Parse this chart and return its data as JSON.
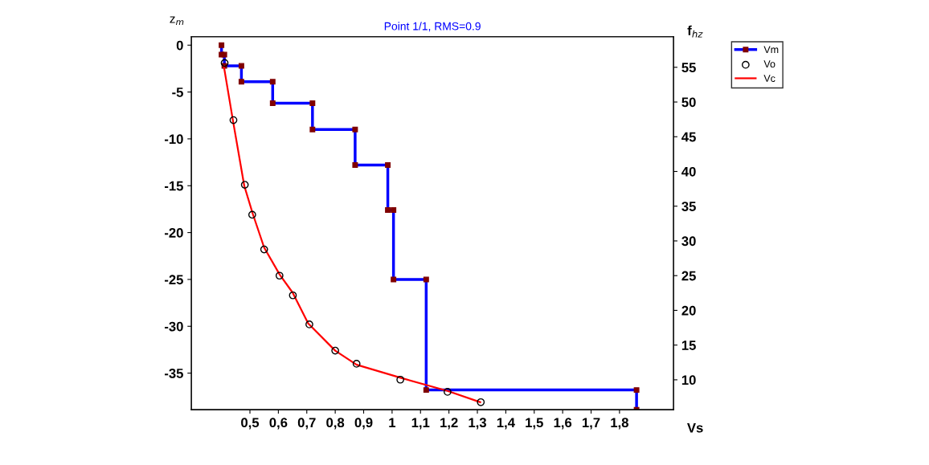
{
  "chart_data": {
    "type": "line",
    "title": "Point 1/1, RMS=0.9",
    "xlabel": "Vs",
    "ylabel": "z$_{m}$",
    "y2label": "f$_{hz}$",
    "xlim": [
      0.294,
      1.99
    ],
    "ylim": [
      -38.9,
      0.9
    ],
    "y2lim": [
      5.7,
      59.4
    ],
    "xticks": [
      {
        "value": 0.5,
        "label": "0,5"
      },
      {
        "value": 0.6,
        "label": "0,6"
      },
      {
        "value": 0.7,
        "label": "0,7"
      },
      {
        "value": 0.8,
        "label": "0,8"
      },
      {
        "value": 0.9,
        "label": "0,9"
      },
      1,
      {
        "value": 1.1,
        "label": "1,1"
      },
      {
        "value": 1.2,
        "label": "1,2"
      },
      {
        "value": 1.3,
        "label": "1,3"
      },
      {
        "value": 1.4,
        "label": "1,4"
      },
      {
        "value": 1.5,
        "label": "1,5"
      },
      {
        "value": 1.6,
        "label": "1,6"
      },
      {
        "value": 1.7,
        "label": "1,7"
      },
      {
        "value": 1.8,
        "label": "1,8"
      }
    ],
    "yticks": [
      0,
      -5,
      -10,
      -15,
      -20,
      -25,
      -30,
      -35
    ],
    "y2ticks": [
      10,
      15,
      20,
      25,
      30,
      35,
      40,
      45,
      50,
      55
    ],
    "grid": false,
    "legend": "top right",
    "series": [
      {
        "name": "Vm",
        "color": "#0000ff",
        "marker": "square",
        "line_style": "solid",
        "x": [
          0.4,
          0.4,
          0.41,
          0.41,
          0.47,
          0.47,
          0.58,
          0.58,
          0.72,
          0.72,
          0.87,
          0.87,
          0.985,
          0.985,
          1.005,
          1.005,
          1.12,
          1.12,
          1.86,
          1.86
        ],
        "values": [
          0,
          -1.0,
          -1.0,
          -2.2,
          -2.2,
          -3.9,
          -3.9,
          -6.2,
          -6.2,
          -9.0,
          -9.0,
          -12.8,
          -12.8,
          -17.6,
          -17.6,
          -25.0,
          -25.0,
          -36.8,
          -36.8,
          -38.9
        ]
      },
      {
        "name": "Vo",
        "type": "scatter",
        "color": "#000000",
        "marker": "circle",
        "x": [
          0.411,
          0.442,
          0.482,
          0.508,
          0.55,
          0.604,
          0.651,
          0.709,
          0.8,
          0.875,
          1.029,
          1.195,
          1.312
        ],
        "values": [
          -1.9,
          -8.0,
          -14.9,
          -18.1,
          -21.8,
          -24.6,
          -26.7,
          -29.8,
          -32.6,
          -34.0,
          -35.7,
          -37.0,
          -38.1
        ]
      },
      {
        "name": "Vc",
        "color": "#ff0000",
        "marker": "none",
        "line_style": "solid",
        "x": [
          0.408,
          0.44,
          0.48,
          0.51,
          0.55,
          0.605,
          0.65,
          0.705,
          0.8,
          0.875,
          1.03,
          1.195,
          1.31
        ],
        "values": [
          -2.2,
          -8.0,
          -15.0,
          -18.0,
          -21.6,
          -24.5,
          -26.4,
          -29.7,
          -32.6,
          -34.1,
          -35.5,
          -36.9,
          -38.1
        ]
      }
    ]
  }
}
